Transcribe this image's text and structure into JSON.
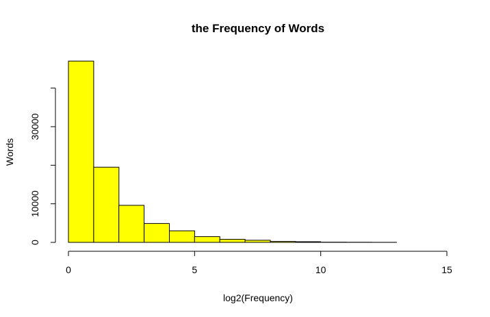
{
  "chart_data": {
    "type": "bar",
    "title": "the Frequency of Words",
    "xlabel": "log2(Frequency)",
    "ylabel": "Words",
    "bar_color": "#ffff00",
    "bins": [
      [
        0,
        1
      ],
      [
        1,
        2
      ],
      [
        2,
        3
      ],
      [
        3,
        4
      ],
      [
        4,
        5
      ],
      [
        5,
        6
      ],
      [
        6,
        7
      ],
      [
        7,
        8
      ],
      [
        8,
        9
      ],
      [
        9,
        10
      ],
      [
        10,
        11
      ],
      [
        11,
        12
      ],
      [
        12,
        13
      ],
      [
        13,
        14
      ],
      [
        14,
        15
      ]
    ],
    "values": [
      47000,
      19500,
      9600,
      4900,
      3000,
      1500,
      800,
      550,
      250,
      180,
      60,
      30,
      15,
      5,
      2
    ],
    "xlim": [
      0,
      15
    ],
    "ylim": [
      0,
      40000
    ],
    "xticks": [
      0,
      5,
      10,
      15
    ],
    "xtick_labels": [
      "0",
      "5",
      "10",
      "15"
    ],
    "yticks": [
      0,
      10000,
      20000,
      30000,
      40000
    ],
    "ytick_labels": [
      "0",
      "10000",
      "",
      "30000",
      ""
    ],
    "grid": false
  }
}
